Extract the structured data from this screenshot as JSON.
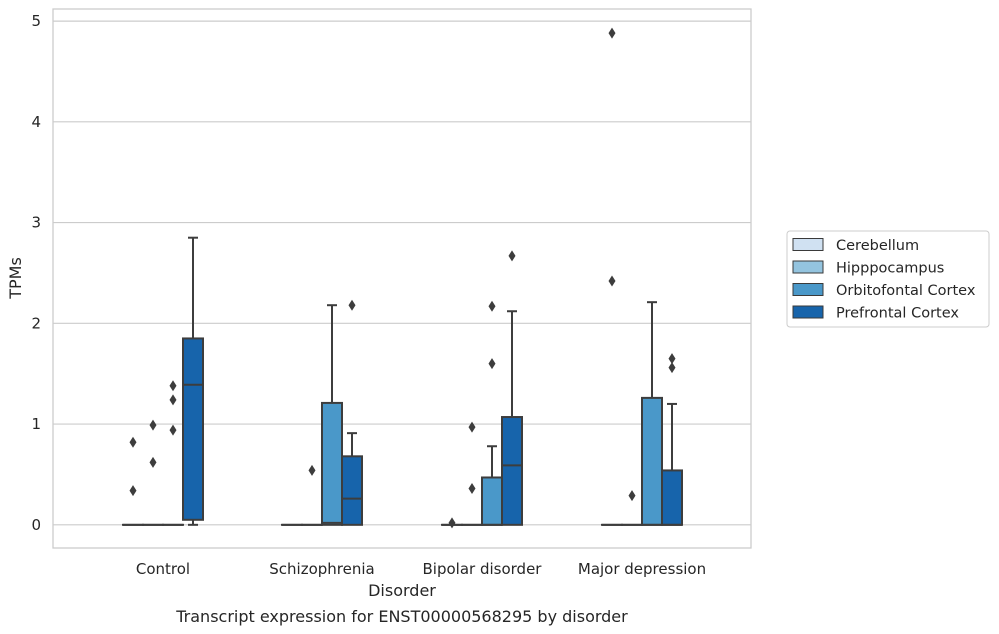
{
  "chart_data": {
    "type": "box",
    "caption": "Transcript expression for ENST00000568295 by disorder",
    "xlabel": "Disorder",
    "ylabel": "TPMs",
    "ylim": [
      -0.23,
      5.12
    ],
    "yticks": [
      "0",
      "1",
      "2",
      "3",
      "4",
      "5"
    ],
    "grid": true,
    "legend_position": "right",
    "categories": [
      "Control",
      "Schizophrenia",
      "Bipolar disorder",
      "Major depression"
    ],
    "series": [
      {
        "name": "Cerebellum",
        "color": "#d0e1f2",
        "boxes": [
          {
            "q1": 0,
            "median": 0,
            "q3": 0,
            "whisker_low": 0,
            "whisker_high": 0,
            "outliers": [
              0.34,
              0.82
            ]
          },
          {
            "q1": 0,
            "median": 0,
            "q3": 0,
            "whisker_low": 0,
            "whisker_high": 0,
            "outliers": []
          },
          {
            "q1": 0,
            "median": 0,
            "q3": 0,
            "whisker_low": 0,
            "whisker_high": 0,
            "outliers": [
              0.02
            ]
          },
          {
            "q1": 0,
            "median": 0,
            "q3": 0,
            "whisker_low": 0,
            "whisker_high": 0,
            "outliers": [
              2.42,
              4.88
            ]
          }
        ]
      },
      {
        "name": "Hipppocampus",
        "color": "#94c4df",
        "boxes": [
          {
            "q1": 0,
            "median": 0,
            "q3": 0,
            "whisker_low": 0,
            "whisker_high": 0,
            "outliers": [
              0.62,
              0.99
            ]
          },
          {
            "q1": 0,
            "median": 0,
            "q3": 0,
            "whisker_low": 0,
            "whisker_high": 0,
            "outliers": [
              0.54
            ]
          },
          {
            "q1": 0,
            "median": 0,
            "q3": 0,
            "whisker_low": 0,
            "whisker_high": 0,
            "outliers": [
              0.36,
              0.97
            ]
          },
          {
            "q1": 0,
            "median": 0,
            "q3": 0,
            "whisker_low": 0,
            "whisker_high": 0,
            "outliers": [
              0.29
            ]
          }
        ]
      },
      {
        "name": "Orbitofontal Cortex",
        "color": "#4a98c9",
        "boxes": [
          {
            "q1": 0,
            "median": 0,
            "q3": 0,
            "whisker_low": 0,
            "whisker_high": 0,
            "outliers": [
              0.94,
              1.24,
              1.38
            ]
          },
          {
            "q1": 0.0,
            "median": 0.02,
            "q3": 1.21,
            "whisker_low": 0,
            "whisker_high": 2.18,
            "outliers": []
          },
          {
            "q1": 0,
            "median": 0,
            "q3": 0.47,
            "whisker_low": 0,
            "whisker_high": 0.78,
            "outliers": [
              1.6,
              2.17
            ]
          },
          {
            "q1": 0,
            "median": 0,
            "q3": 1.26,
            "whisker_low": 0,
            "whisker_high": 2.21,
            "outliers": []
          }
        ]
      },
      {
        "name": "Prefrontal Cortex",
        "color": "#1764ab",
        "boxes": [
          {
            "q1": 0.05,
            "median": 1.39,
            "q3": 1.85,
            "whisker_low": 0,
            "whisker_high": 2.85,
            "outliers": []
          },
          {
            "q1": 0,
            "median": 0.26,
            "q3": 0.68,
            "whisker_low": 0,
            "whisker_high": 0.91,
            "outliers": [
              2.18
            ]
          },
          {
            "q1": 0,
            "median": 0.59,
            "q3": 1.07,
            "whisker_low": 0,
            "whisker_high": 2.12,
            "outliers": [
              2.67
            ]
          },
          {
            "q1": 0,
            "median": 0,
            "q3": 0.54,
            "whisker_low": 0,
            "whisker_high": 1.2,
            "outliers": [
              1.56,
              1.65
            ]
          }
        ]
      }
    ]
  }
}
